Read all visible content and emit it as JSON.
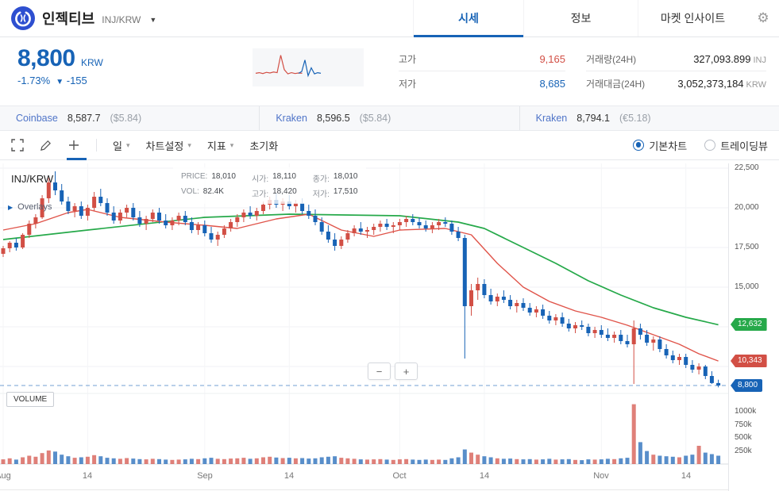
{
  "icons": {
    "chevron_down": "▾",
    "caret_down": "▼",
    "gear": "⚙",
    "overlays_arrow": "▶"
  },
  "header": {
    "coin_name": "인젝티브",
    "pair": "INJ/KRW",
    "tabs": [
      {
        "label": "시세",
        "active": true
      },
      {
        "label": "정보",
        "active": false
      },
      {
        "label": "마켓 인사이트",
        "active": false
      }
    ]
  },
  "summary": {
    "price": "8,800",
    "currency": "KRW",
    "change_percent": "-1.73%",
    "change_arrow": "▼",
    "change_amount": "-155",
    "stats": [
      {
        "label": "고가",
        "value": "9,165"
      },
      {
        "label": "저가",
        "value": "8,685"
      },
      {
        "label": "거래량(24H)",
        "value": "327,093.899",
        "unit": "INJ"
      },
      {
        "label": "거래대금(24H)",
        "value": "3,052,373,184",
        "unit": "KRW"
      }
    ],
    "sparkline": {
      "red": [
        28,
        30,
        27,
        31,
        29,
        32,
        30,
        88,
        40,
        26,
        30,
        27,
        29,
        28
      ],
      "blue": [
        28,
        34,
        72,
        20,
        46,
        26,
        30,
        28
      ]
    }
  },
  "exchanges": [
    {
      "name": "Coinbase",
      "price": "8,587.7",
      "fiat": "($5.84)"
    },
    {
      "name": "Kraken",
      "price": "8,596.5",
      "fiat": "($5.84)"
    },
    {
      "name": "Kraken",
      "price": "8,794.1",
      "fiat": "(€5.18)"
    }
  ],
  "toolbar": {
    "interval": "일",
    "chart_settings": "차트설정",
    "indicators": "지표",
    "reset": "초기화",
    "chart_modes": [
      {
        "label": "기본차트",
        "selected": true
      },
      {
        "label": "트레이딩뷰",
        "selected": false
      }
    ]
  },
  "chart_data": {
    "type": "candlestick",
    "symbol": "INJ/KRW",
    "legend": {
      "price_label": "PRICE:",
      "price": "18,010",
      "open_label": "시가:",
      "open": "18,110",
      "close_label": "종가:",
      "close": "18,010",
      "vol_label": "VOL:",
      "vol": "82.4K",
      "high_label": "고가:",
      "high": "18,420",
      "low_label": "저가:",
      "low": "17,510"
    },
    "overlays_label": "Overlays",
    "volume_label": "VOLUME",
    "zoom": {
      "minus": "−",
      "plus": "+"
    },
    "colors": {
      "up": "#d24f45",
      "down": "#1763b6",
      "ma_long": "#26a94a",
      "ma_short": "#e0544a",
      "current_line": "#1763b6"
    },
    "y_axis_ticks": [
      22500,
      20000,
      17500,
      15000
    ],
    "grid_levels": [
      22500,
      20000,
      17500,
      15000,
      12500,
      10000
    ],
    "price_tags": [
      {
        "label": "12,632",
        "value": 12632,
        "color": "#26a94a"
      },
      {
        "label": "10,343",
        "value": 10343,
        "color": "#d24f45"
      },
      {
        "label": "8,800",
        "value": 8800,
        "color": "#1763b6"
      }
    ],
    "current_price": 8800,
    "volume_ticks": [
      {
        "label": "1000k",
        "value": 1000
      },
      {
        "label": "750k",
        "value": 750
      },
      {
        "label": "500k",
        "value": 500
      },
      {
        "label": "250k",
        "value": 250
      }
    ],
    "x_ticks": [
      {
        "i": 0,
        "label": "Aug"
      },
      {
        "i": 13,
        "label": "14"
      },
      {
        "i": 31,
        "label": "Sep"
      },
      {
        "i": 44,
        "label": "14"
      },
      {
        "i": 61,
        "label": "Oct"
      },
      {
        "i": 74,
        "label": "14"
      },
      {
        "i": 92,
        "label": "Nov"
      },
      {
        "i": 105,
        "label": "14"
      }
    ],
    "ma_long": [
      [
        0,
        18000
      ],
      [
        13,
        18600
      ],
      [
        31,
        19400
      ],
      [
        44,
        19600
      ],
      [
        61,
        19500
      ],
      [
        70,
        19100
      ],
      [
        74,
        18700
      ],
      [
        80,
        17500
      ],
      [
        85,
        16500
      ],
      [
        90,
        15400
      ],
      [
        95,
        14500
      ],
      [
        100,
        13700
      ],
      [
        105,
        13100
      ],
      [
        110,
        12632
      ]
    ],
    "ma_short": [
      [
        0,
        18600
      ],
      [
        5,
        19000
      ],
      [
        10,
        19700
      ],
      [
        13,
        19900
      ],
      [
        18,
        19400
      ],
      [
        25,
        19100
      ],
      [
        31,
        18900
      ],
      [
        36,
        18700
      ],
      [
        42,
        19300
      ],
      [
        47,
        19600
      ],
      [
        52,
        18600
      ],
      [
        57,
        18200
      ],
      [
        61,
        18600
      ],
      [
        68,
        18700
      ],
      [
        72,
        18300
      ],
      [
        76,
        16500
      ],
      [
        80,
        15000
      ],
      [
        84,
        14100
      ],
      [
        88,
        13500
      ],
      [
        92,
        13100
      ],
      [
        96,
        12600
      ],
      [
        100,
        12000
      ],
      [
        104,
        11400
      ],
      [
        107,
        10800
      ],
      [
        110,
        10343
      ]
    ],
    "candles": [
      [
        17100,
        17600,
        16900,
        17450,
        90
      ],
      [
        17450,
        17900,
        17200,
        17800,
        110
      ],
      [
        17800,
        18100,
        17300,
        17500,
        85
      ],
      [
        17500,
        18400,
        17400,
        18300,
        130
      ],
      [
        18300,
        19200,
        18100,
        19000,
        160
      ],
      [
        19000,
        19600,
        18700,
        19400,
        140
      ],
      [
        19400,
        20800,
        19300,
        20600,
        210
      ],
      [
        20600,
        21900,
        20300,
        21600,
        260
      ],
      [
        21600,
        22300,
        20800,
        21100,
        240
      ],
      [
        21100,
        21500,
        20200,
        20400,
        180
      ],
      [
        20400,
        20700,
        19600,
        19800,
        150
      ],
      [
        19800,
        20300,
        19400,
        20100,
        120
      ],
      [
        20100,
        20400,
        19300,
        19500,
        130
      ],
      [
        19500,
        20200,
        19200,
        20000,
        140
      ],
      [
        20000,
        21000,
        19800,
        20700,
        170
      ],
      [
        20700,
        21200,
        20100,
        20300,
        150
      ],
      [
        20300,
        20600,
        19500,
        19700,
        120
      ],
      [
        19700,
        20100,
        19000,
        19200,
        110
      ],
      [
        19200,
        19900,
        19000,
        19700,
        100
      ],
      [
        19700,
        20200,
        19400,
        20000,
        115
      ],
      [
        20000,
        20300,
        19200,
        19400,
        105
      ],
      [
        19400,
        19800,
        18800,
        19000,
        95
      ],
      [
        19000,
        19500,
        18600,
        19300,
        90
      ],
      [
        19300,
        19900,
        19100,
        19700,
        100
      ],
      [
        19700,
        20000,
        19000,
        19200,
        95
      ],
      [
        19200,
        19600,
        18700,
        18900,
        85
      ],
      [
        18900,
        19400,
        18600,
        19200,
        80
      ],
      [
        19200,
        19700,
        18900,
        19500,
        85
      ],
      [
        19500,
        19800,
        18900,
        19100,
        90
      ],
      [
        19100,
        19400,
        18400,
        18600,
        100
      ],
      [
        18600,
        19100,
        18300,
        18900,
        95
      ],
      [
        18900,
        19200,
        18200,
        18400,
        110
      ],
      [
        18400,
        18800,
        17800,
        18000,
        120
      ],
      [
        18000,
        18500,
        17600,
        18300,
        100
      ],
      [
        18300,
        18900,
        18100,
        18700,
        95
      ],
      [
        18700,
        19300,
        18500,
        19100,
        105
      ],
      [
        19100,
        19600,
        18800,
        19400,
        110
      ],
      [
        19400,
        19900,
        19100,
        19700,
        120
      ],
      [
        19700,
        20100,
        19300,
        19500,
        100
      ],
      [
        19500,
        20000,
        19200,
        19800,
        110
      ],
      [
        19800,
        20400,
        19600,
        20200,
        130
      ],
      [
        20200,
        20700,
        19900,
        20500,
        140
      ],
      [
        20500,
        20900,
        20000,
        20200,
        125
      ],
      [
        20200,
        20600,
        19800,
        20400,
        115
      ],
      [
        20400,
        20800,
        19900,
        20100,
        120
      ],
      [
        20100,
        20500,
        19700,
        20300,
        110
      ],
      [
        20300,
        20600,
        19600,
        19800,
        115
      ],
      [
        19800,
        20200,
        19300,
        19500,
        105
      ],
      [
        19500,
        19900,
        18900,
        19100,
        110
      ],
      [
        19100,
        19400,
        18300,
        18500,
        130
      ],
      [
        18500,
        18900,
        17800,
        18000,
        140
      ],
      [
        18000,
        18400,
        17300,
        17600,
        150
      ],
      [
        17600,
        18200,
        17400,
        18000,
        120
      ],
      [
        18000,
        18600,
        17800,
        18400,
        110
      ],
      [
        18400,
        18900,
        18200,
        18700,
        100
      ],
      [
        18700,
        19100,
        18300,
        18500,
        90
      ],
      [
        18500,
        18800,
        18100,
        18600,
        85
      ],
      [
        18600,
        19000,
        18300,
        18800,
        90
      ],
      [
        18800,
        19200,
        18500,
        19000,
        95
      ],
      [
        19000,
        19300,
        18600,
        18800,
        85
      ],
      [
        18800,
        19100,
        18400,
        18900,
        80
      ],
      [
        18900,
        19300,
        18600,
        19100,
        90
      ],
      [
        19100,
        19500,
        18800,
        19300,
        95
      ],
      [
        19300,
        19600,
        18900,
        19100,
        85
      ],
      [
        19100,
        19400,
        18700,
        18900,
        80
      ],
      [
        18900,
        19200,
        18500,
        18700,
        85
      ],
      [
        18700,
        19100,
        18400,
        18900,
        80
      ],
      [
        18900,
        19300,
        18600,
        19100,
        85
      ],
      [
        19100,
        19400,
        18800,
        19000,
        80
      ],
      [
        19000,
        19200,
        18300,
        18500,
        110
      ],
      [
        18500,
        18800,
        17900,
        18100,
        130
      ],
      [
        18100,
        18300,
        10500,
        13800,
        280
      ],
      [
        13800,
        15200,
        13200,
        14800,
        220
      ],
      [
        14800,
        15600,
        14200,
        15200,
        180
      ],
      [
        15200,
        15500,
        14300,
        14500,
        150
      ],
      [
        14500,
        14900,
        13900,
        14100,
        130
      ],
      [
        14100,
        14600,
        13800,
        14400,
        110
      ],
      [
        14400,
        14800,
        14000,
        14200,
        100
      ],
      [
        14200,
        14500,
        13600,
        13800,
        105
      ],
      [
        13800,
        14200,
        13400,
        14000,
        95
      ],
      [
        14000,
        14300,
        13500,
        13700,
        90
      ],
      [
        13700,
        14000,
        13200,
        13400,
        95
      ],
      [
        13400,
        13800,
        13100,
        13600,
        85
      ],
      [
        13600,
        13900,
        13000,
        13200,
        90
      ],
      [
        13200,
        13500,
        12700,
        12900,
        100
      ],
      [
        12900,
        13300,
        12600,
        13100,
        85
      ],
      [
        13100,
        13400,
        12500,
        12700,
        90
      ],
      [
        12700,
        13000,
        12200,
        12400,
        95
      ],
      [
        12400,
        12800,
        12100,
        12600,
        80
      ],
      [
        12600,
        12900,
        12300,
        12500,
        75
      ],
      [
        12500,
        12700,
        11900,
        12100,
        90
      ],
      [
        12100,
        12500,
        11800,
        12300,
        85
      ],
      [
        12300,
        12600,
        11800,
        12000,
        90
      ],
      [
        12000,
        12400,
        11600,
        11800,
        100
      ],
      [
        11800,
        12200,
        11500,
        12000,
        95
      ],
      [
        12000,
        12300,
        11400,
        11600,
        110
      ],
      [
        11600,
        12000,
        11200,
        11400,
        120
      ],
      [
        11400,
        12900,
        8900,
        12400,
        1150
      ],
      [
        12400,
        12700,
        11700,
        12000,
        420
      ],
      [
        12000,
        12300,
        11300,
        11500,
        250
      ],
      [
        11500,
        11900,
        11000,
        11700,
        180
      ],
      [
        11700,
        11900,
        10900,
        11100,
        160
      ],
      [
        11100,
        11400,
        10500,
        10700,
        150
      ],
      [
        10700,
        11000,
        10200,
        10400,
        140
      ],
      [
        10400,
        10800,
        10100,
        10600,
        130
      ],
      [
        10600,
        10800,
        9900,
        10100,
        160
      ],
      [
        10100,
        10400,
        9600,
        9800,
        180
      ],
      [
        9800,
        10200,
        9500,
        10000,
        350
      ],
      [
        10000,
        10100,
        9200,
        9400,
        220
      ],
      [
        9400,
        9700,
        8900,
        8955,
        190
      ],
      [
        8955,
        9165,
        8685,
        8800,
        160
      ]
    ]
  }
}
